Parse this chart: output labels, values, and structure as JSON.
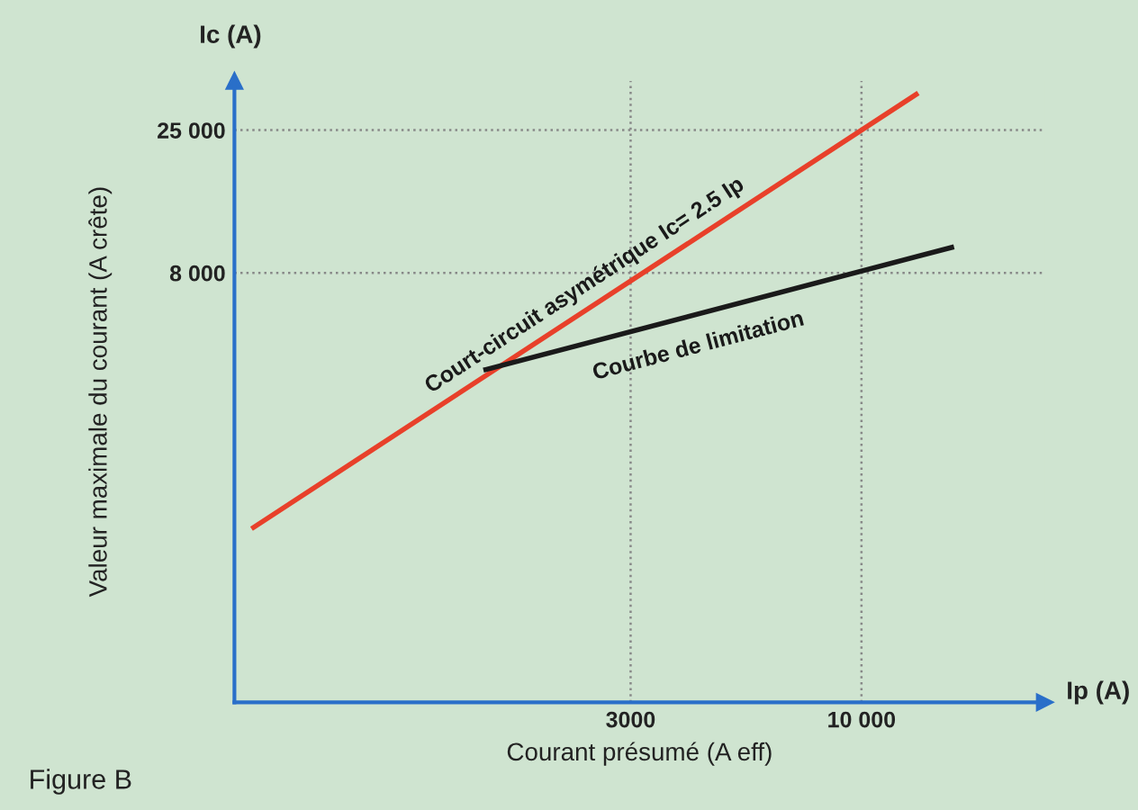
{
  "chart_data": {
    "type": "line",
    "xlabel": "Courant présumé (A eff)",
    "ylabel": "Valeur maximale du courant (A crête)",
    "log": "xy",
    "xlim": [
      380,
      26000
    ],
    "ylim": [
      260,
      37000
    ],
    "xticks": [
      {
        "value": 3000,
        "label": "3000"
      },
      {
        "value": 10000,
        "label": "10 000"
      }
    ],
    "yticks": [
      {
        "value": 8000,
        "label": "8 000"
      },
      {
        "value": 25000,
        "label": "25 000"
      }
    ],
    "grid": true,
    "line_style": "solid",
    "marker": "none",
    "series": [
      {
        "name": "Court-circuit asymétrique Ic= 2.5 Ip",
        "color": "#e8402a",
        "x": [
          420,
          13300
        ],
        "values": [
          1050,
          33250
        ]
      },
      {
        "name": "Courbe de limitation",
        "color": "#1a1a1a",
        "x": [
          1410,
          16000
        ],
        "values": [
          3700,
          9800
        ]
      }
    ],
    "annotations": [
      "Ic (A)",
      "Ip (A)",
      "Figure B"
    ]
  }
}
